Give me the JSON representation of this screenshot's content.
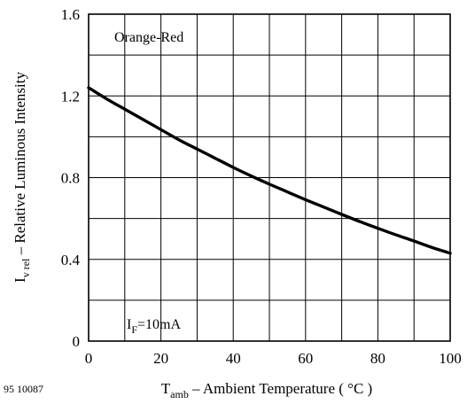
{
  "figure_id": "95 10087",
  "chart_data": {
    "type": "line",
    "title": "",
    "xlabel": {
      "symbol": "T",
      "subscript": "amb",
      "text": " – Ambient Temperature ( °C )"
    },
    "ylabel": {
      "symbol": "I",
      "subscript": "v rel",
      "text": "  – Relative Luminous Intensity"
    },
    "xlim": [
      0,
      100
    ],
    "ylim": [
      0,
      1.6
    ],
    "xticks": [
      0,
      20,
      40,
      60,
      80,
      100
    ],
    "xtick_labels": [
      "0",
      "20",
      "40",
      "60",
      "80",
      "100"
    ],
    "yticks": [
      0,
      0.4,
      0.8,
      1.2,
      1.6
    ],
    "ytick_labels": [
      "0",
      "0.4",
      "0.8",
      "1.2",
      "1.6"
    ],
    "grid": true,
    "grid_x": [
      0,
      10,
      20,
      30,
      40,
      50,
      60,
      70,
      80,
      90,
      100
    ],
    "grid_y": [
      0,
      0.2,
      0.4,
      0.6,
      0.8,
      1.0,
      1.2,
      1.4,
      1.6
    ],
    "annotations": {
      "series_label": "Orange-Red",
      "condition": {
        "symbol": "I",
        "subscript": "F",
        "text": "=10mA"
      }
    },
    "series": [
      {
        "x": [
          0,
          5,
          10,
          15,
          20,
          25,
          30,
          35,
          40,
          45,
          50,
          55,
          60,
          65,
          70,
          75,
          80,
          85,
          90,
          95,
          100
        ],
        "values": [
          1.24,
          1.185,
          1.135,
          1.085,
          1.035,
          0.985,
          0.94,
          0.895,
          0.85,
          0.808,
          0.768,
          0.73,
          0.692,
          0.656,
          0.62,
          0.585,
          0.552,
          0.52,
          0.49,
          0.458,
          0.43
        ]
      }
    ]
  }
}
